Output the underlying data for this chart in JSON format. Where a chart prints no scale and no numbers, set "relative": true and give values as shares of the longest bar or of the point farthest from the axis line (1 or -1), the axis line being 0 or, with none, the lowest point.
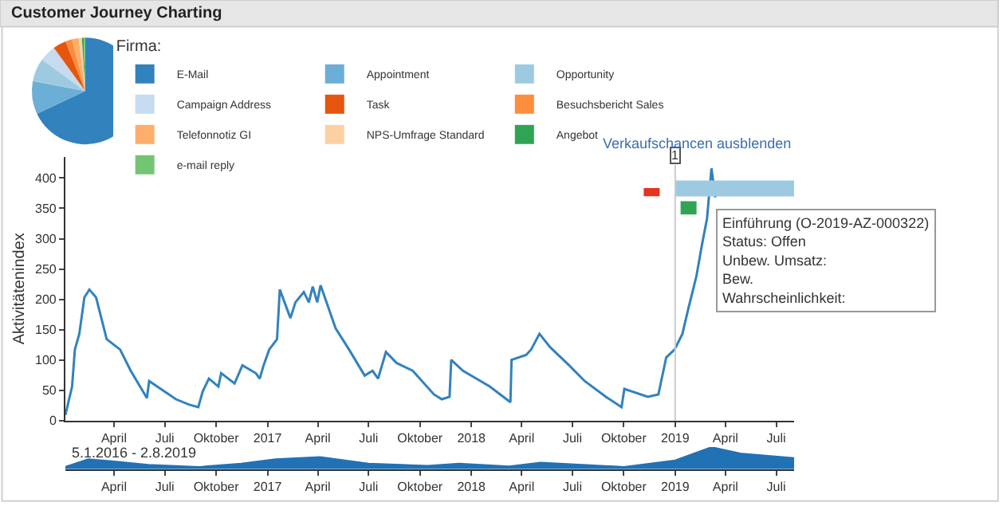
{
  "chart_data": [
    {
      "type": "pie",
      "title": "Customer Journey Charting",
      "legend_title": "Firma:",
      "legend": "right",
      "categories": [
        "E-Mail",
        "Appointment",
        "Opportunity",
        "Campaign Address",
        "Task",
        "Besuchsbericht Sales",
        "Telefonnotiz GI",
        "NPS-Umfrage Standard",
        "Angebot",
        "e-mail reply"
      ],
      "values": [
        68,
        10,
        7,
        5,
        4,
        2,
        2,
        1,
        0.5,
        0.5
      ],
      "colors": [
        "#3182bd",
        "#6baed6",
        "#9ecae1",
        "#c6dbef",
        "#e6550d",
        "#fd8d3c",
        "#fdae6b",
        "#fdd0a2",
        "#31a354",
        "#74c476"
      ]
    },
    {
      "type": "line",
      "ylabel": "Aktivitätenindex",
      "legend": false,
      "xlim": [
        "2016-01-05",
        "2019-08-02"
      ],
      "ylim": [
        0,
        435
      ],
      "xticks": [
        {
          "value": "2016-04-01",
          "label": "April"
        },
        {
          "value": "2016-07-01",
          "label": "Juli"
        },
        {
          "value": "2016-10-01",
          "label": "Oktober"
        },
        {
          "value": "2017-01-01",
          "label": "2017"
        },
        {
          "value": "2017-04-01",
          "label": "April"
        },
        {
          "value": "2017-07-01",
          "label": "Juli"
        },
        {
          "value": "2017-10-01",
          "label": "Oktober"
        },
        {
          "value": "2018-01-01",
          "label": "2018"
        },
        {
          "value": "2018-04-01",
          "label": "April"
        },
        {
          "value": "2018-07-01",
          "label": "Juli"
        },
        {
          "value": "2018-10-01",
          "label": "Oktober"
        },
        {
          "value": "2019-01-01",
          "label": "2019"
        },
        {
          "value": "2019-04-01",
          "label": "April"
        },
        {
          "value": "2019-07-01",
          "label": "Juli"
        }
      ],
      "yticks": [
        0,
        50,
        100,
        150,
        200,
        250,
        300,
        350,
        400
      ],
      "ref_lines": [
        {
          "axis": "x",
          "value": "2019-01-01",
          "label": "1",
          "color": "#cccccc"
        }
      ],
      "annotations": [
        "Verkaufschancen ausblenden",
        {
          "text": "Einführung (O-2019-AZ-000322)\nStatus: Offen\nUnbew. Umsatz:\nBew.\nWahrscheinlichkeit:",
          "x": "2019-03-14",
          "y": 350
        }
      ],
      "series": [
        {
          "color": "#3182bd",
          "x": [
            "2016-01-05",
            "2016-01-17",
            "2016-01-22",
            "2016-01-30",
            "2016-02-08",
            "2016-02-17",
            "2016-02-29",
            "2016-03-19",
            "2016-04-12",
            "2016-05-01",
            "2016-05-30",
            "2016-06-03",
            "2016-07-21",
            "2016-08-14",
            "2016-08-30",
            "2016-09-07",
            "2016-09-18",
            "2016-10-05",
            "2016-10-10",
            "2016-11-03",
            "2016-11-17",
            "2016-12-11",
            "2016-12-18",
            "2016-12-25",
            "2017-01-04",
            "2017-01-18",
            "2017-01-23",
            "2017-02-11",
            "2017-02-20",
            "2017-03-07",
            "2017-03-16",
            "2017-03-23",
            "2017-03-31",
            "2017-04-06",
            "2017-05-03",
            "2017-05-27",
            "2017-06-24",
            "2017-07-08",
            "2017-07-18",
            "2017-08-01",
            "2017-08-20",
            "2017-09-18",
            "2017-10-26",
            "2017-11-09",
            "2017-11-23",
            "2017-11-26",
            "2017-12-17",
            "2018-02-03",
            "2018-03-12",
            "2018-03-14",
            "2018-04-09",
            "2018-04-18",
            "2018-05-03",
            "2018-05-22",
            "2018-06-25",
            "2018-07-23",
            "2018-08-30",
            "2018-09-27",
            "2018-10-02",
            "2018-11-13",
            "2018-12-02",
            "2018-12-16",
            "2018-12-31",
            "2019-01-14",
            "2019-01-25",
            "2019-02-08",
            "2019-02-18",
            "2019-02-27",
            "2019-03-07",
            "2019-03-14"
          ],
          "values": [
            9,
            56,
            117,
            143,
            203,
            216,
            203,
            134,
            117,
            82,
            37,
            65,
            35,
            26,
            22,
            48,
            69,
            56,
            78,
            61,
            91,
            78,
            69,
            91,
            117,
            134,
            216,
            169,
            195,
            212,
            195,
            221,
            195,
            223,
            152,
            117,
            74,
            82,
            69,
            113,
            95,
            82,
            43,
            35,
            39,
            100,
            82,
            56,
            30,
            100,
            108,
            117,
            143,
            121,
            91,
            65,
            39,
            22,
            52,
            39,
            43,
            104,
            117,
            143,
            186,
            238,
            290,
            333,
            416,
            368
          ]
        },
        {
          "color": "#9ecae1",
          "x": [
            "2019-01-01",
            "2019-08-02"
          ],
          "values": [
            383,
            383
          ]
        },
        {
          "color": "#e6341f",
          "x": [
            "2018-11-20",
            "2018-11-20"
          ],
          "values": [
            370,
            392
          ]
        },
        {
          "color": "#31a354",
          "x": [
            "2019-01-25",
            "2019-01-25"
          ],
          "values": [
            340,
            362
          ]
        }
      ]
    },
    {
      "type": "area",
      "relative": true,
      "tick_labels": "x",
      "legend": false,
      "xlim": [
        "2016-01-05",
        "2019-08-02"
      ],
      "xticks": [
        {
          "value": "2016-04-01",
          "label": "April"
        },
        {
          "value": "2016-07-01",
          "label": "Juli"
        },
        {
          "value": "2016-10-01",
          "label": "Oktober"
        },
        {
          "value": "2017-01-01",
          "label": "2017"
        },
        {
          "value": "2017-04-01",
          "label": "April"
        },
        {
          "value": "2017-07-01",
          "label": "Juli"
        },
        {
          "value": "2017-10-01",
          "label": "Oktober"
        },
        {
          "value": "2018-01-01",
          "label": "2018"
        },
        {
          "value": "2018-04-01",
          "label": "April"
        },
        {
          "value": "2018-07-01",
          "label": "Juli"
        },
        {
          "value": "2018-10-01",
          "label": "Oktober"
        },
        {
          "value": "2019-01-01",
          "label": "2019"
        },
        {
          "value": "2019-04-01",
          "label": "April"
        },
        {
          "value": "2019-07-01",
          "label": "Juli"
        }
      ],
      "annotations": [
        "5.1.2016 - 2.8.2019"
      ],
      "series": [
        {
          "color": "#2171b5",
          "x": [
            "2016-01-05",
            "2016-02-15",
            "2016-04-01",
            "2016-06-01",
            "2016-09-01",
            "2016-11-15",
            "2017-01-15",
            "2017-04-05",
            "2017-07-01",
            "2017-10-15",
            "2017-12-10",
            "2018-03-10",
            "2018-05-05",
            "2018-10-01",
            "2019-01-01",
            "2019-03-07",
            "2019-05-01",
            "2019-08-02"
          ],
          "values": [
            0.1,
            0.45,
            0.35,
            0.2,
            0.1,
            0.25,
            0.45,
            0.55,
            0.25,
            0.15,
            0.25,
            0.12,
            0.3,
            0.1,
            0.4,
            1,
            0.7,
            0.5
          ]
        }
      ]
    }
  ]
}
